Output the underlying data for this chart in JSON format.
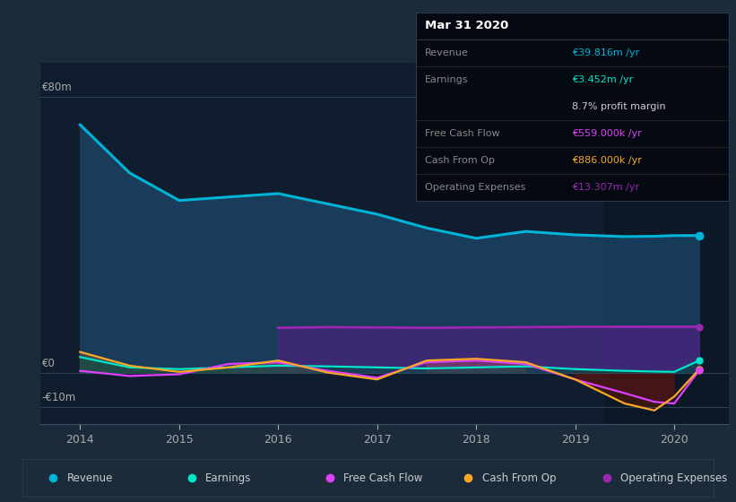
{
  "bg_color": "#1c2b3a",
  "plot_bg_color": "#0f1d2e",
  "years": [
    2014,
    2014.5,
    2015,
    2015.5,
    2016,
    2016.5,
    2017,
    2017.5,
    2018,
    2018.5,
    2019,
    2019.5,
    2019.8,
    2020,
    2020.25
  ],
  "revenue": [
    72,
    58,
    50,
    51,
    52,
    49,
    46,
    42,
    39,
    41,
    40,
    39.5,
    39.6,
    39.8,
    39.816
  ],
  "earnings": [
    4.5,
    1.5,
    1.0,
    1.5,
    2.0,
    1.8,
    1.5,
    1.2,
    1.5,
    1.8,
    1.0,
    0.5,
    0.3,
    0.2,
    3.452
  ],
  "free_cash_flow": [
    0.5,
    -1.0,
    -0.5,
    2.5,
    3.0,
    0.5,
    -1.5,
    3.0,
    3.5,
    2.5,
    -2.0,
    -6.0,
    -8.5,
    -9.0,
    0.559
  ],
  "cash_from_op": [
    6.0,
    2.0,
    0.2,
    1.5,
    3.5,
    0.0,
    -2.0,
    3.5,
    4.0,
    3.0,
    -2.0,
    -9.0,
    -11.0,
    -7.0,
    0.886
  ],
  "operating_expenses": [
    0,
    0,
    0,
    0,
    13.0,
    13.2,
    13.1,
    13.0,
    13.1,
    13.2,
    13.3,
    13.3,
    13.307,
    13.307,
    13.307
  ],
  "revenue_color": "#00b4d8",
  "earnings_color": "#00e5cc",
  "fcf_color": "#e040fb",
  "cash_op_color": "#f9a825",
  "op_exp_color": "#9c27b0",
  "ylim_min": -15,
  "ylim_max": 90,
  "xlim_min": 2013.6,
  "xlim_max": 2020.55,
  "xticks": [
    2014,
    2015,
    2016,
    2017,
    2018,
    2019,
    2020
  ],
  "ytick_values": [
    80,
    0,
    -10
  ],
  "ytick_labels": [
    "€80m",
    "€0",
    "-€10m"
  ],
  "highlight_x_start": 2019.3,
  "highlight_x_end": 2020.55,
  "legend_items": [
    "Revenue",
    "Earnings",
    "Free Cash Flow",
    "Cash From Op",
    "Operating Expenses"
  ],
  "legend_colors": [
    "#00b4d8",
    "#00e5cc",
    "#e040fb",
    "#f9a825",
    "#9c27b0"
  ],
  "info_title": "Mar 31 2020",
  "info_rows": [
    {
      "label": "Revenue",
      "value": "€39.816m /yr",
      "value_color": "#00b4d8",
      "divider_above": false
    },
    {
      "label": "Earnings",
      "value": "€3.452m /yr",
      "value_color": "#00e5cc",
      "divider_above": true
    },
    {
      "label": "",
      "value": "8.7% profit margin",
      "value_color": "#cccccc",
      "divider_above": false
    },
    {
      "label": "Free Cash Flow",
      "value": "€559.000k /yr",
      "value_color": "#e040fb",
      "divider_above": true
    },
    {
      "label": "Cash From Op",
      "value": "€886.000k /yr",
      "value_color": "#f9a825",
      "divider_above": true
    },
    {
      "label": "Operating Expenses",
      "value": "€13.307m /yr",
      "value_color": "#9c27b0",
      "divider_above": true
    }
  ]
}
